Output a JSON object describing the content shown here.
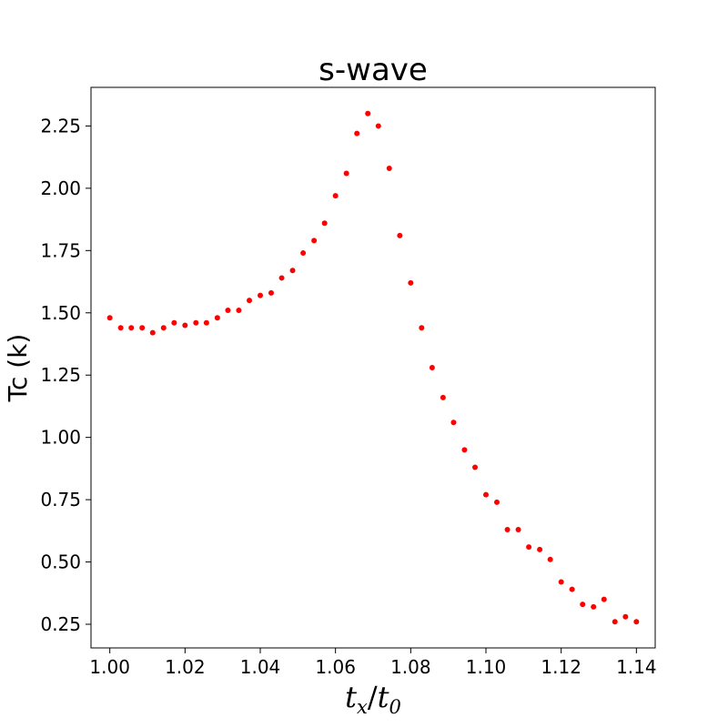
{
  "chart_data": {
    "type": "scatter",
    "title": "s-wave",
    "xlabel": {
      "base": "t",
      "sub": "x",
      "slash": "/",
      "base2": "t",
      "sub2": "0"
    },
    "ylabel": "Tc (k)",
    "xlim": [
      0.995,
      1.145
    ],
    "ylim": [
      0.155,
      2.405
    ],
    "x_ticks": [
      1.0,
      1.02,
      1.04,
      1.06,
      1.08,
      1.1,
      1.12,
      1.14
    ],
    "x_tick_labels": [
      "1.00",
      "1.02",
      "1.04",
      "1.06",
      "1.08",
      "1.10",
      "1.12",
      "1.14"
    ],
    "y_ticks": [
      0.25,
      0.5,
      0.75,
      1.0,
      1.25,
      1.5,
      1.75,
      2.0,
      2.25
    ],
    "y_tick_labels": [
      "0.25",
      "0.50",
      "0.75",
      "1.00",
      "1.25",
      "1.50",
      "1.75",
      "2.00",
      "2.25"
    ],
    "grid": false,
    "marker_color": "#ff0000",
    "series": [
      {
        "x": [
          1.0,
          1.0029,
          1.0057,
          1.0086,
          1.0114,
          1.0143,
          1.0171,
          1.02,
          1.0229,
          1.0257,
          1.0286,
          1.0314,
          1.0343,
          1.0371,
          1.04,
          1.0429,
          1.0457,
          1.0486,
          1.0514,
          1.0543,
          1.0571,
          1.06,
          1.0629,
          1.0657,
          1.0686,
          1.0714,
          1.0743,
          1.0771,
          1.08,
          1.0829,
          1.0857,
          1.0886,
          1.0914,
          1.0943,
          1.0971,
          1.1,
          1.1029,
          1.1057,
          1.1086,
          1.1114,
          1.1143,
          1.1171,
          1.12,
          1.1229,
          1.1257,
          1.1286,
          1.1314,
          1.1343,
          1.1371,
          1.14
        ],
        "y": [
          1.48,
          1.44,
          1.44,
          1.44,
          1.42,
          1.44,
          1.46,
          1.45,
          1.46,
          1.46,
          1.48,
          1.51,
          1.51,
          1.55,
          1.57,
          1.58,
          1.64,
          1.67,
          1.74,
          1.79,
          1.86,
          1.97,
          2.06,
          2.22,
          2.3,
          2.25,
          2.08,
          1.81,
          1.62,
          1.44,
          1.28,
          1.16,
          1.06,
          0.95,
          0.88,
          0.77,
          0.74,
          0.63,
          0.63,
          0.56,
          0.55,
          0.51,
          0.42,
          0.39,
          0.33,
          0.32,
          0.35,
          0.26,
          0.28,
          0.26
        ]
      }
    ]
  }
}
